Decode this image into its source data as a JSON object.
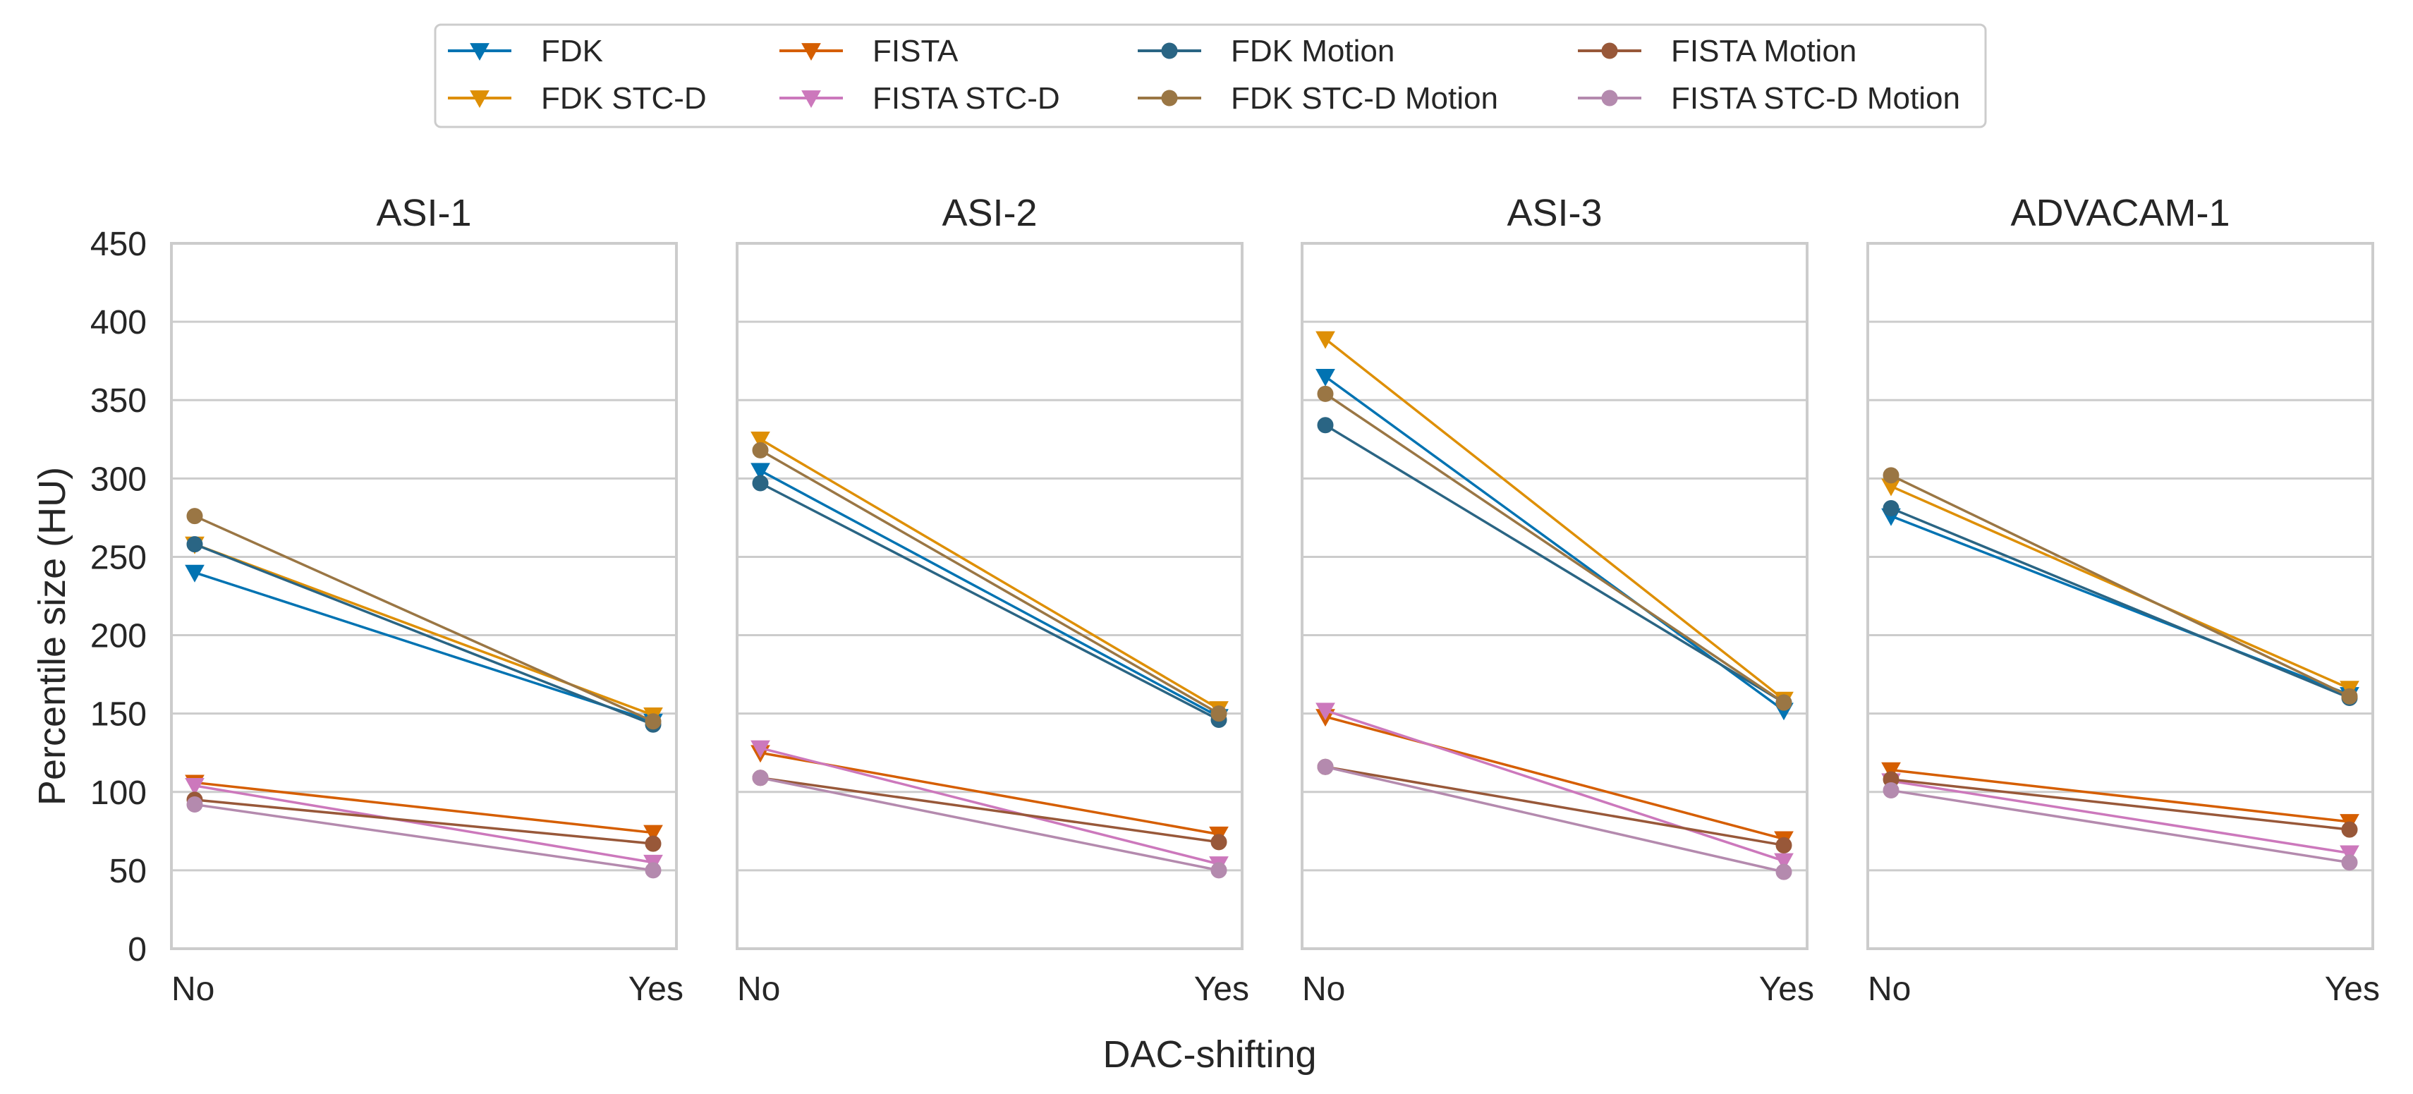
{
  "chart_data": {
    "type": "line",
    "title": "",
    "xlabel": "DAC-shifting",
    "ylabel": "Percentile size (HU)",
    "x_categories": [
      "No",
      "Yes"
    ],
    "ylim": [
      0,
      450
    ],
    "yticks": [
      0,
      50,
      100,
      150,
      200,
      250,
      300,
      350,
      400,
      450
    ],
    "grid": true,
    "legend_position": "top-center",
    "legend": [
      {
        "name": "FDK",
        "marker": "triangle-down",
        "color": "#0173b2"
      },
      {
        "name": "FDK STC-D",
        "marker": "triangle-down",
        "color": "#de8f05"
      },
      {
        "name": "FISTA",
        "marker": "triangle-down",
        "color": "#d55e00"
      },
      {
        "name": "FISTA STC-D",
        "marker": "triangle-down",
        "color": "#cc78bc"
      },
      {
        "name": "FDK Motion",
        "marker": "circle",
        "color": "#2a6584"
      },
      {
        "name": "FDK STC-D Motion",
        "marker": "circle",
        "color": "#9a7644"
      },
      {
        "name": "FISTA Motion",
        "marker": "circle",
        "color": "#985839"
      },
      {
        "name": "FISTA STC-D Motion",
        "marker": "circle",
        "color": "#b48aae"
      }
    ],
    "panels": [
      {
        "title": "ASI-1",
        "series": [
          {
            "name": "FDK",
            "values": [
              240,
              145
            ]
          },
          {
            "name": "FDK STC-D",
            "values": [
              258,
              149
            ]
          },
          {
            "name": "FISTA",
            "values": [
              106,
              74
            ]
          },
          {
            "name": "FISTA STC-D",
            "values": [
              104,
              55
            ]
          },
          {
            "name": "FDK Motion",
            "values": [
              258,
              143
            ]
          },
          {
            "name": "FDK STC-D Motion",
            "values": [
              276,
              145
            ]
          },
          {
            "name": "FISTA Motion",
            "values": [
              95,
              67
            ]
          },
          {
            "name": "FISTA STC-D Motion",
            "values": [
              92,
              50
            ]
          }
        ]
      },
      {
        "title": "ASI-2",
        "series": [
          {
            "name": "FDK",
            "values": [
              305,
              148
            ]
          },
          {
            "name": "FDK STC-D",
            "values": [
              325,
              153
            ]
          },
          {
            "name": "FISTA",
            "values": [
              125,
              73
            ]
          },
          {
            "name": "FISTA STC-D",
            "values": [
              128,
              54
            ]
          },
          {
            "name": "FDK Motion",
            "values": [
              297,
              146
            ]
          },
          {
            "name": "FDK STC-D Motion",
            "values": [
              318,
              150
            ]
          },
          {
            "name": "FISTA Motion",
            "values": [
              109,
              68
            ]
          },
          {
            "name": "FISTA STC-D Motion",
            "values": [
              109,
              50
            ]
          }
        ]
      },
      {
        "title": "ASI-3",
        "series": [
          {
            "name": "FDK",
            "values": [
              365,
              152
            ]
          },
          {
            "name": "FDK STC-D",
            "values": [
              389,
              159
            ]
          },
          {
            "name": "FISTA",
            "values": [
              148,
              70
            ]
          },
          {
            "name": "FISTA STC-D",
            "values": [
              152,
              56
            ]
          },
          {
            "name": "FDK Motion",
            "values": [
              334,
              157
            ]
          },
          {
            "name": "FDK STC-D Motion",
            "values": [
              354,
              157
            ]
          },
          {
            "name": "FISTA Motion",
            "values": [
              116,
              66
            ]
          },
          {
            "name": "FISTA STC-D Motion",
            "values": [
              116,
              49
            ]
          }
        ]
      },
      {
        "title": "ADVACAM-1",
        "series": [
          {
            "name": "FDK",
            "values": [
              276,
              162
            ]
          },
          {
            "name": "FDK STC-D",
            "values": [
              295,
              166
            ]
          },
          {
            "name": "FISTA",
            "values": [
              114,
              81
            ]
          },
          {
            "name": "FISTA STC-D",
            "values": [
              107,
              61
            ]
          },
          {
            "name": "FDK Motion",
            "values": [
              281,
              160
            ]
          },
          {
            "name": "FDK STC-D Motion",
            "values": [
              302,
              161
            ]
          },
          {
            "name": "FISTA Motion",
            "values": [
              108,
              76
            ]
          },
          {
            "name": "FISTA STC-D Motion",
            "values": [
              101,
              55
            ]
          }
        ]
      }
    ]
  }
}
